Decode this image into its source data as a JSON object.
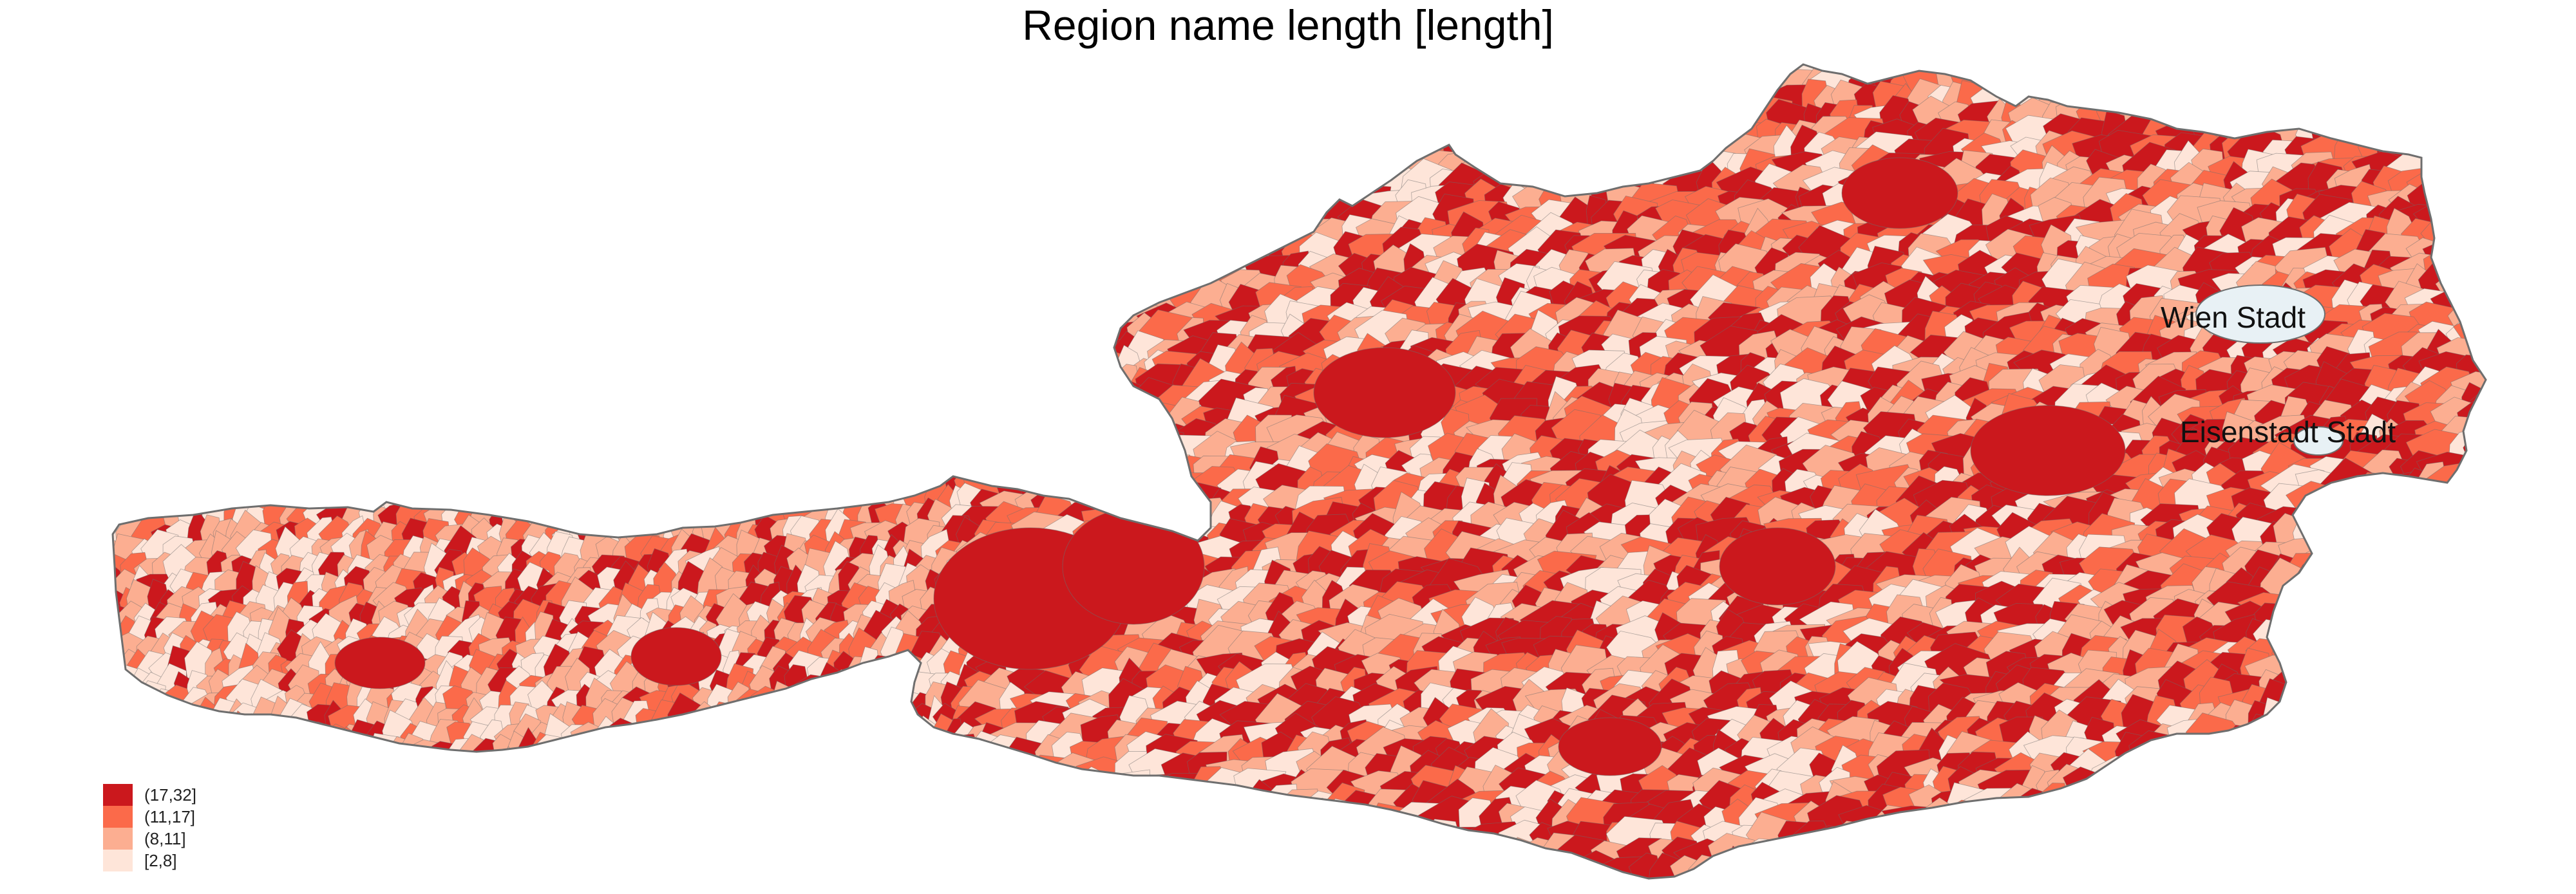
{
  "title": "Region name length [length]",
  "legend": {
    "items": [
      {
        "label": "(17,32]",
        "color": "#CB181D"
      },
      {
        "label": "(11,17]",
        "color": "#FB6A4A"
      },
      {
        "label": "(8,11]",
        "color": "#FCAE91"
      },
      {
        "label": "[2,8]",
        "color": "#FEE5D9"
      }
    ]
  },
  "highlight_color": "#E8F1F5",
  "border_color": "#6E6E6E",
  "labels": {
    "wien": "Wien Stadt",
    "eisenstadt": "Eisenstadt Stadt"
  }
}
